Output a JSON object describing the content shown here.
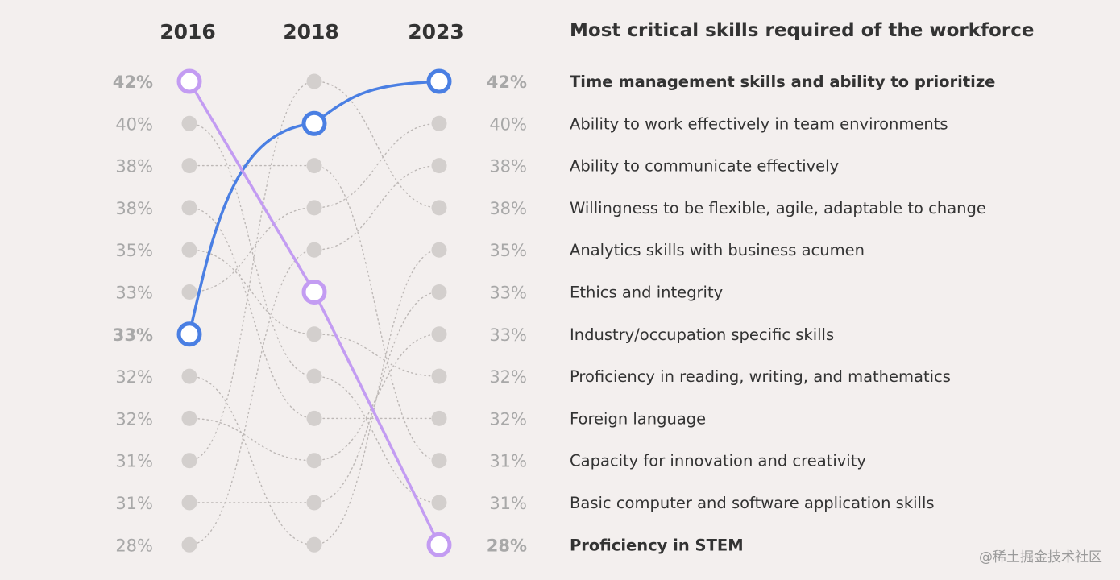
{
  "chart_data": {
    "type": "slope",
    "title": "Most critical skills required of the workforce",
    "years": [
      "2016",
      "2018",
      "2023"
    ],
    "skills": [
      {
        "name": "Time management skills and ability to prioritize",
        "value_2023": "42%",
        "ranks": [
          7,
          2,
          1
        ],
        "highlight": "blue"
      },
      {
        "name": "Ability to work effectively in team environments",
        "value_2023": "40%",
        "ranks": [
          6,
          4,
          2
        ]
      },
      {
        "name": "Ability to communicate effectively",
        "value_2023": "38%",
        "ranks": [
          12,
          5,
          3
        ]
      },
      {
        "name": "Willingness to be flexible, agile, adaptable to change",
        "value_2023": "38%",
        "ranks": [
          10,
          1,
          4
        ]
      },
      {
        "name": "Analytics skills with business acumen",
        "value_2023": "35%",
        "ranks": [
          8,
          12,
          5
        ]
      },
      {
        "name": "Ethics and integrity",
        "value_2023": "33%",
        "ranks": [
          11,
          11,
          6
        ]
      },
      {
        "name": "Industry/occupation specific skills",
        "value_2023": "33%",
        "ranks": [
          9,
          10,
          7
        ]
      },
      {
        "name": "Proficiency in reading, writing, and mathematics",
        "value_2023": "32%",
        "ranks": [
          5,
          7,
          8
        ]
      },
      {
        "name": "Foreign language",
        "value_2023": "32%",
        "ranks": [
          4,
          9,
          9
        ]
      },
      {
        "name": "Capacity for innovation and creativity",
        "value_2023": "31%",
        "ranks": [
          3,
          3,
          10
        ]
      },
      {
        "name": "Basic computer and software application skills",
        "value_2023": "31%",
        "ranks": [
          2,
          8,
          11
        ]
      },
      {
        "name": "Proficiency in STEM",
        "value_2023": "28%",
        "ranks": [
          1,
          6,
          12
        ],
        "highlight": "purple"
      }
    ],
    "values_2016": [
      "42%",
      "40%",
      "38%",
      "38%",
      "35%",
      "33%",
      "33%",
      "32%",
      "32%",
      "31%",
      "31%",
      "28%"
    ],
    "values_2023": [
      "42%",
      "40%",
      "38%",
      "38%",
      "35%",
      "33%",
      "33%",
      "32%",
      "32%",
      "31%",
      "31%",
      "28%"
    ]
  },
  "colors": {
    "blue": "#4a7fe3",
    "purple": "#c39cf2",
    "dot": "#d3cfcd",
    "dotted_line": "#bdb8b6",
    "text": "#333333",
    "muted": "#a8a8a8"
  },
  "watermark": "@稀土掘金技术社区"
}
